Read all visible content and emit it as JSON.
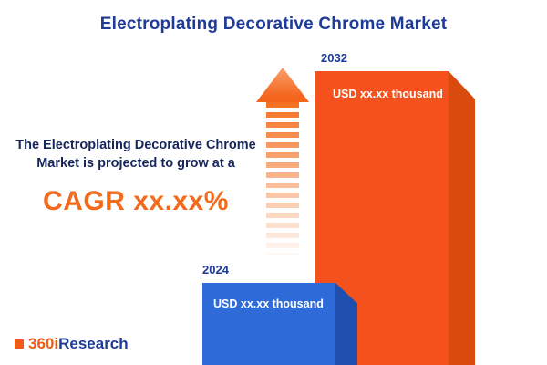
{
  "title": "Electroplating Decorative Chrome Market",
  "description": {
    "text": "The Electroplating Decorative Chrome Market is projected to grow at a",
    "cagr": "CAGR xx.xx%"
  },
  "chart_data": {
    "type": "bar",
    "title": "Electroplating Decorative Chrome Market",
    "categories": [
      "2024",
      "2032"
    ],
    "values": [
      null,
      null
    ],
    "value_labels": [
      "USD xx.xx thousand",
      "USD xx.xx thousand"
    ],
    "bar_colors": [
      "#2f6ad9",
      "#f4511c"
    ],
    "orientation": "vertical",
    "legend": "none",
    "grid": "off"
  },
  "bars": [
    {
      "year": "2024",
      "value_label": "USD xx.xx thousand",
      "color": "#2f6ad9",
      "side_color": "#1e4fae"
    },
    {
      "year": "2032",
      "value_label": "USD xx.xx thousand",
      "color": "#f4511c",
      "side_color": "#d84a0e"
    }
  ],
  "logo": {
    "prefix": "360i",
    "suffix": "Research"
  },
  "colors": {
    "accent_orange": "#f05a14",
    "navy": "#1d3b97",
    "bar_blue": "#2f6ad9",
    "bar_orange": "#f4511c"
  }
}
